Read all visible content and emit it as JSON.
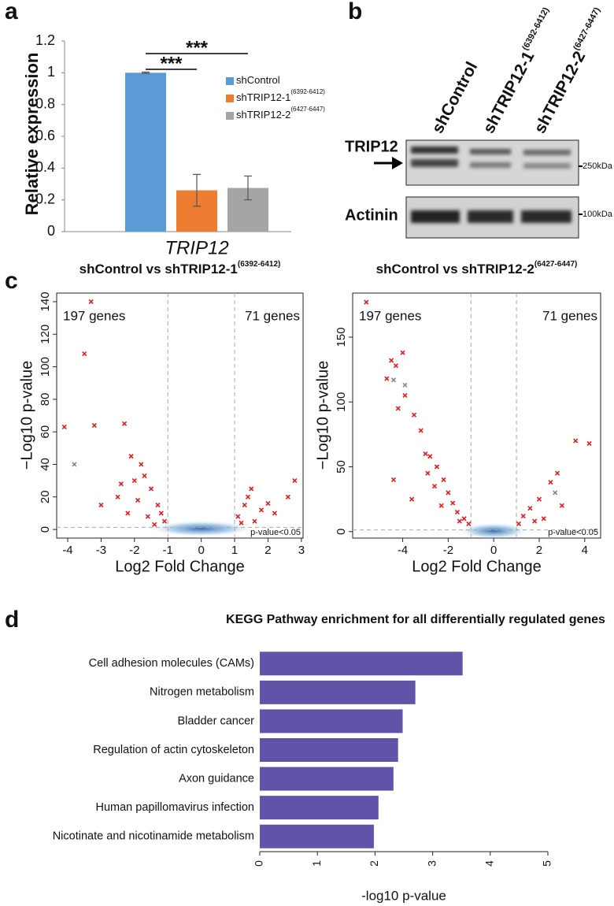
{
  "panel_labels": [
    "a",
    "b",
    "c",
    "d"
  ],
  "blot": {
    "lanes": [
      {
        "name": "shControl"
      },
      {
        "name": "shTRIP12-1",
        "sup": "(6392-6412)"
      },
      {
        "name": "shTRIP12-2",
        "sup": "(6427-6447)"
      }
    ],
    "rows": [
      "TRIP12",
      "Actinin"
    ],
    "markers": [
      "250kDa",
      "100kDa"
    ]
  },
  "chart_data": [
    {
      "type": "bar",
      "ylabel": "Relative expression",
      "categories": [
        "TRIP12"
      ],
      "series": [
        {
          "name": "shControl",
          "color": "#5b9bd5",
          "values": [
            1.0
          ],
          "errors": [
            0.004
          ]
        },
        {
          "name": "shTRIP12-1",
          "name_sup": "(6392-6412)",
          "color": "#ed7d31",
          "values": [
            0.26
          ],
          "errors": [
            0.1
          ]
        },
        {
          "name": "shTRIP12-2",
          "name_sup": "(6427-6447)",
          "color": "#a5a5a5",
          "values": [
            0.275
          ],
          "errors": [
            0.075
          ]
        }
      ],
      "ylim": [
        0,
        1.2
      ],
      "yticks": [
        0,
        0.2,
        0.4,
        0.6,
        0.8,
        1,
        1.2
      ],
      "annotations": [
        "***",
        "***"
      ]
    },
    {
      "type": "volcano",
      "title": "shControl vs shTRIP12-1",
      "title_sup": "(6392-6412)",
      "xlabel": "Log2 Fold Change",
      "ylabel": "−Log10 p-value",
      "annotations": [
        "197 genes",
        "71 genes",
        "p-value<0.05"
      ],
      "xlim": [
        -4.33,
        3.05
      ],
      "ylim": [
        -5.3,
        145.3
      ],
      "xticks": [
        -4,
        -3,
        -2,
        -1,
        0,
        1,
        2,
        3
      ],
      "yticks": [
        0,
        20,
        40,
        60,
        80,
        100,
        120,
        140
      ],
      "vlines": [
        -1,
        1
      ],
      "hline": 1.3,
      "series": [
        {
          "color": "#e41a1c",
          "x": [
            -3.3,
            -3.5,
            -4.1,
            -3.2,
            -2.3,
            -2.1,
            -1.8,
            -2.0,
            -1.5,
            -2.5,
            -1.3,
            -1.2,
            -1.6,
            -2.2,
            -1.1,
            -1.9,
            -1.4,
            -3.0,
            -1.7,
            -2.4,
            2.8,
            2.6,
            1.5,
            1.3,
            1.1,
            1.8,
            1.2,
            2.2,
            1.6,
            1.4,
            2.0
          ],
          "y": [
            140,
            108,
            63,
            64,
            65,
            45,
            40,
            30,
            25,
            20,
            15,
            10,
            8,
            10,
            5,
            18,
            3,
            15,
            33,
            28,
            30,
            20,
            25,
            15,
            8,
            12,
            4,
            10,
            5,
            20,
            16
          ]
        },
        {
          "color": "#888888",
          "x": [
            -3.8
          ],
          "y": [
            40
          ]
        }
      ]
    },
    {
      "type": "volcano",
      "title": "shControl vs shTRIP12-2",
      "title_sup": "(6427-6447)",
      "xlabel": "Log2 Fold Change",
      "ylabel": "−Log10 p-value",
      "annotations": [
        "197 genes",
        "71 genes",
        "p-value<0.05"
      ],
      "xlim": [
        -6.2,
        4.7
      ],
      "ylim": [
        -5,
        184
      ],
      "xticks": [
        -4,
        -2,
        0,
        2,
        4
      ],
      "yticks": [
        0,
        50,
        100,
        150
      ],
      "vlines": [
        -1,
        1
      ],
      "hline": 1.3,
      "series": [
        {
          "color": "#e41a1c",
          "x": [
            -5.6,
            -4.5,
            -4.7,
            -4.0,
            -4.3,
            -3.9,
            -3.5,
            -3.2,
            -4.2,
            -3.0,
            -2.5,
            -2.8,
            -2.2,
            -2.0,
            -1.8,
            -1.6,
            -1.3,
            -1.1,
            -2.6,
            -4.4,
            -3.6,
            -2.9,
            -1.5,
            -2.3,
            4.2,
            3.6,
            2.8,
            2.5,
            2.0,
            1.6,
            1.3,
            1.1,
            2.2,
            3.0,
            1.8
          ],
          "y": [
            177,
            132,
            118,
            138,
            128,
            105,
            90,
            78,
            95,
            60,
            50,
            58,
            40,
            30,
            22,
            15,
            10,
            6,
            35,
            40,
            25,
            45,
            8,
            20,
            68,
            70,
            45,
            38,
            25,
            18,
            12,
            6,
            10,
            20,
            8
          ]
        },
        {
          "color": "#888888",
          "x": [
            -3.9,
            -4.4,
            2.7
          ],
          "y": [
            113,
            117,
            30
          ]
        }
      ]
    },
    {
      "type": "hbar",
      "title": "KEGG Pathway enrichment for all differentially regulated genes",
      "xlabel": "-log10 p-value",
      "categories": [
        "Cell adhesion molecules (CAMs)",
        "Nitrogen metabolism",
        "Bladder cancer",
        "Regulation of actin cytoskeleton",
        "Axon guidance",
        "Human papillomavirus infection",
        "Nicotinate and nicotinamide metabolism"
      ],
      "category_colors": [
        "#e8262a",
        "#111111",
        "#111111",
        "#e8262a",
        "#111111",
        "#111111",
        "#111111"
      ],
      "values": [
        3.52,
        2.7,
        2.48,
        2.4,
        2.32,
        2.06,
        1.98
      ],
      "color": "#5f54a8",
      "xlim": [
        0,
        5
      ],
      "xticks": [
        0,
        1,
        2,
        3,
        4,
        5
      ]
    }
  ]
}
